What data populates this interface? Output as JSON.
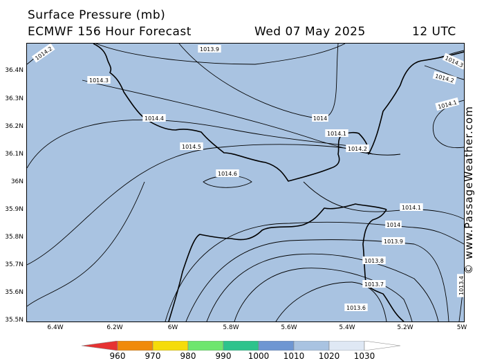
{
  "header": {
    "line1": "Surface Pressure (mb)",
    "line2": "ECMWF 156 Hour Forecast",
    "date": "Wed 07 May 2025",
    "time": "12 UTC"
  },
  "credit": "© www.PassageWeather.com",
  "axes": {
    "lat_labels": [
      "36.4N",
      "36.3N",
      "36.2N",
      "36.1N",
      "36N",
      "35.9N",
      "35.8N",
      "35.7N",
      "35.6N",
      "35.5N"
    ],
    "lon_labels": [
      "6.4W",
      "6.2W",
      "6W",
      "5.8W",
      "5.6W",
      "5.4W",
      "5.2W",
      "5W"
    ]
  },
  "contour_labels": [
    "1014.2",
    "1013.9",
    "1014.3",
    "1014.3",
    "1014.2",
    "1014.1",
    "1014",
    "1014.1",
    "1014.4",
    "1014.5",
    "1014.2",
    "1014.6",
    "1014.1",
    "1014",
    "1013.9",
    "1013.8",
    "1013.7",
    "1013.6",
    "1013.4"
  ],
  "legend": {
    "labels": [
      "960",
      "970",
      "980",
      "990",
      "1000",
      "1010",
      "1020",
      "1030"
    ],
    "colors": [
      "#e63232",
      "#f08a0a",
      "#f5dc0a",
      "#6ee66e",
      "#2dc38c",
      "#6e96d2",
      "#a9c3e1",
      "#dfe8f4",
      "#ffffff"
    ]
  },
  "map": {
    "sea_color": "#a9c3e1",
    "land_color": "#a9c3e1",
    "coastline_color": "#000000",
    "isobar_color": "#000000"
  }
}
